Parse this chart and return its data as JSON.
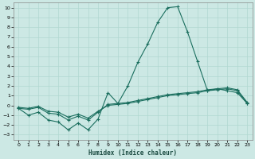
{
  "xlabel": "Humidex (Indice chaleur)",
  "bg_color": "#cce8e4",
  "grid_color": "#b0d8d0",
  "line_color": "#1a6e5e",
  "xlim": [
    -0.5,
    23.5
  ],
  "ylim": [
    -3.5,
    10.5
  ],
  "xticks": [
    0,
    1,
    2,
    3,
    4,
    5,
    6,
    7,
    8,
    9,
    10,
    11,
    12,
    13,
    14,
    15,
    16,
    17,
    18,
    19,
    20,
    21,
    22,
    23
  ],
  "yticks": [
    -3,
    -2,
    -1,
    0,
    1,
    2,
    3,
    4,
    5,
    6,
    7,
    8,
    9,
    10
  ],
  "line1_x": [
    0,
    1,
    2,
    3,
    4,
    5,
    6,
    7,
    8,
    9,
    10,
    11,
    12,
    13,
    14,
    15,
    16,
    17,
    18,
    19,
    20,
    21,
    22,
    23
  ],
  "line1_y": [
    -0.3,
    -1.0,
    -0.7,
    -1.5,
    -1.7,
    -2.5,
    -1.8,
    -2.5,
    -1.4,
    1.3,
    0.2,
    2.0,
    4.4,
    6.3,
    8.5,
    10.0,
    10.1,
    7.5,
    4.5,
    1.5,
    1.7,
    1.5,
    1.3,
    0.2
  ],
  "line2_x": [
    0,
    1,
    2,
    3,
    4,
    5,
    6,
    7,
    8,
    9,
    10,
    11,
    12,
    13,
    14,
    15,
    16,
    17,
    18,
    19,
    20,
    21,
    22,
    23
  ],
  "line2_y": [
    -0.2,
    -0.3,
    -0.1,
    -0.6,
    -0.7,
    -1.2,
    -0.9,
    -1.3,
    -0.6,
    0.0,
    0.1,
    0.2,
    0.4,
    0.6,
    0.8,
    1.0,
    1.1,
    1.2,
    1.3,
    1.5,
    1.6,
    1.7,
    1.5,
    0.2
  ],
  "line3_x": [
    0,
    1,
    2,
    3,
    4,
    5,
    6,
    7,
    8,
    9,
    10,
    11,
    12,
    13,
    14,
    15,
    16,
    17,
    18,
    19,
    20,
    21,
    22,
    23
  ],
  "line3_y": [
    -0.3,
    -0.4,
    -0.2,
    -0.8,
    -0.9,
    -1.5,
    -1.1,
    -1.5,
    -0.7,
    0.1,
    0.2,
    0.3,
    0.5,
    0.7,
    0.9,
    1.1,
    1.2,
    1.3,
    1.4,
    1.6,
    1.7,
    1.8,
    1.6,
    0.3
  ]
}
